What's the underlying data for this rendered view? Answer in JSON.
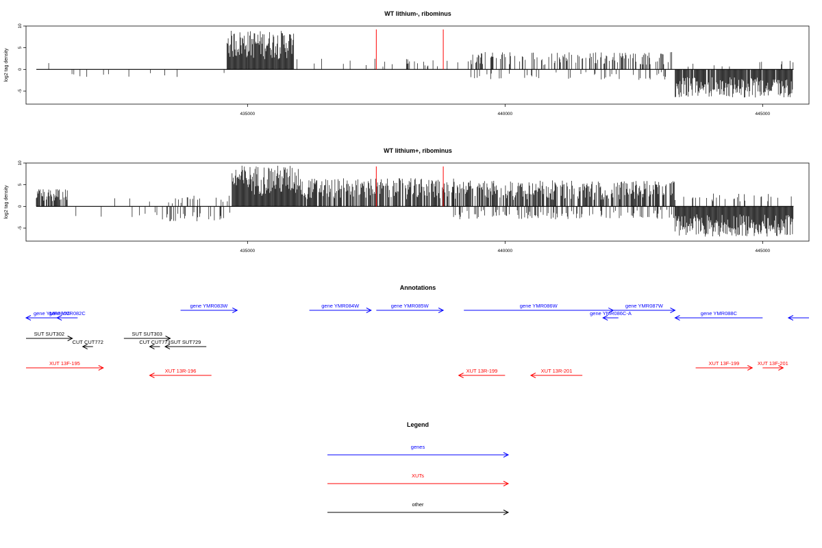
{
  "colors": {
    "genes": "#0000ff",
    "XUTs": "#ff0000",
    "other": "#000000",
    "marker": "#ff0000"
  },
  "chart_data": [
    {
      "type": "bar",
      "title": "WT lithium-, ribominus",
      "ylabel": "log2 tag density",
      "xlim": [
        430700,
        445900
      ],
      "ylim": [
        -8,
        10
      ],
      "xticks": [
        435000,
        440000,
        445000
      ],
      "yticks": [
        -5,
        0,
        5,
        10
      ],
      "markers": [
        437500,
        438800
      ],
      "approx_segments": [
        {
          "from": 430900,
          "to": 431400,
          "sign": 1,
          "max": 2.2,
          "density": 0.15
        },
        {
          "from": 431400,
          "to": 434700,
          "sign": -1,
          "max": 2.2,
          "density": 0.04
        },
        {
          "from": 434600,
          "to": 435900,
          "sign": 1,
          "max": 9.0,
          "density": 1.0
        },
        {
          "from": 435900,
          "to": 439300,
          "sign": 1,
          "max": 2.5,
          "density": 0.08
        },
        {
          "from": 439300,
          "to": 443300,
          "sign": 1,
          "max": 4.0,
          "density": 0.35
        },
        {
          "from": 439300,
          "to": 443300,
          "sign": -1,
          "max": 2.5,
          "density": 0.12
        },
        {
          "from": 443300,
          "to": 445600,
          "sign": -1,
          "max": 6.5,
          "density": 0.9
        },
        {
          "from": 443300,
          "to": 445600,
          "sign": 1,
          "max": 2.0,
          "density": 0.05
        }
      ]
    },
    {
      "type": "bar",
      "title": "WT lithium+, ribominus",
      "ylabel": "log2 tag density",
      "xlim": [
        430700,
        445900
      ],
      "ylim": [
        -8,
        10
      ],
      "xticks": [
        435000,
        440000,
        445000
      ],
      "yticks": [
        -5,
        0,
        5,
        10
      ],
      "markers": [
        437500,
        438800
      ],
      "approx_segments": [
        {
          "from": 430900,
          "to": 431500,
          "sign": 1,
          "max": 4.0,
          "density": 0.8
        },
        {
          "from": 431500,
          "to": 433300,
          "sign": 1,
          "max": 2.0,
          "density": 0.06
        },
        {
          "from": 431500,
          "to": 433300,
          "sign": -1,
          "max": 2.5,
          "density": 0.06
        },
        {
          "from": 433300,
          "to": 434700,
          "sign": -1,
          "max": 3.5,
          "density": 0.25
        },
        {
          "from": 433300,
          "to": 434700,
          "sign": 1,
          "max": 2.5,
          "density": 0.15
        },
        {
          "from": 434700,
          "to": 436000,
          "sign": 1,
          "max": 9.5,
          "density": 1.0
        },
        {
          "from": 436000,
          "to": 439000,
          "sign": 1,
          "max": 6.5,
          "density": 0.75
        },
        {
          "from": 439000,
          "to": 443300,
          "sign": 1,
          "max": 6.0,
          "density": 0.7
        },
        {
          "from": 439000,
          "to": 443300,
          "sign": -1,
          "max": 3.0,
          "density": 0.25
        },
        {
          "from": 443300,
          "to": 445600,
          "sign": -1,
          "max": 7.0,
          "density": 1.0
        },
        {
          "from": 443300,
          "to": 445600,
          "sign": 1,
          "max": 3.0,
          "density": 0.15
        }
      ]
    }
  ],
  "annotations": {
    "title": "Annotations",
    "xlim": [
      430700,
      445900
    ],
    "rows": {
      "genes_upper": 0,
      "genes_lower": 1,
      "other_a": 2,
      "other_b": 3,
      "xut_a": 4,
      "xut_b": 5
    },
    "features": [
      {
        "type": "genes",
        "label": "gene YMR081C",
        "start": 430700,
        "end": 431700,
        "strand": "-",
        "row": "genes_lower"
      },
      {
        "type": "genes",
        "label": "gene YMR082C",
        "start": 431300,
        "end": 431700,
        "strand": "-",
        "row": "genes_lower"
      },
      {
        "type": "genes",
        "label": "gene YMR083W",
        "start": 433700,
        "end": 434800,
        "strand": "+",
        "row": "genes_upper"
      },
      {
        "type": "genes",
        "label": "gene YMR084W",
        "start": 436200,
        "end": 437400,
        "strand": "+",
        "row": "genes_upper"
      },
      {
        "type": "genes",
        "label": "gene YMR085W",
        "start": 437500,
        "end": 438800,
        "strand": "+",
        "row": "genes_upper"
      },
      {
        "type": "genes",
        "label": "gene YMR086W",
        "start": 439200,
        "end": 442100,
        "strand": "+",
        "row": "genes_upper"
      },
      {
        "type": "genes",
        "label": "gene YMR086C-A",
        "start": 441900,
        "end": 442200,
        "strand": "-",
        "row": "genes_lower"
      },
      {
        "type": "genes",
        "label": "gene YMR087W",
        "start": 442100,
        "end": 443300,
        "strand": "+",
        "row": "genes_upper"
      },
      {
        "type": "genes",
        "label": "gene YMR088C",
        "start": 443300,
        "end": 445000,
        "strand": "-",
        "row": "genes_lower"
      },
      {
        "type": "genes",
        "label": "",
        "start": 445500,
        "end": 445900,
        "strand": "-",
        "row": "genes_lower"
      },
      {
        "type": "other",
        "label": "SUT SUT302",
        "start": 430700,
        "end": 431600,
        "strand": "+",
        "row": "other_a"
      },
      {
        "type": "other",
        "label": "SUT SUT303",
        "start": 432600,
        "end": 433500,
        "strand": "+",
        "row": "other_a"
      },
      {
        "type": "other",
        "label": "SUT SUT729",
        "start": 433400,
        "end": 434200,
        "strand": "-",
        "row": "other_b"
      },
      {
        "type": "other",
        "label": "CUT CUT772",
        "start": 431800,
        "end": 432000,
        "strand": "-",
        "row": "other_b"
      },
      {
        "type": "other",
        "label": "CUT CUT773",
        "start": 433100,
        "end": 433300,
        "strand": "-",
        "row": "other_b"
      },
      {
        "type": "XUTs",
        "label": "XUT 13F-195",
        "start": 430700,
        "end": 432200,
        "strand": "+",
        "row": "xut_a"
      },
      {
        "type": "XUTs",
        "label": "XUT 13R-196",
        "start": 433100,
        "end": 434300,
        "strand": "-",
        "row": "xut_b"
      },
      {
        "type": "XUTs",
        "label": "XUT 13R-199",
        "start": 439100,
        "end": 440000,
        "strand": "-",
        "row": "xut_b"
      },
      {
        "type": "XUTs",
        "label": "XUT 13R-201",
        "start": 440500,
        "end": 441500,
        "strand": "-",
        "row": "xut_b"
      },
      {
        "type": "XUTs",
        "label": "XUT 13F-199",
        "start": 443700,
        "end": 444800,
        "strand": "+",
        "row": "xut_a"
      },
      {
        "type": "XUTs",
        "label": "XUT 13F-201",
        "start": 445000,
        "end": 445400,
        "strand": "+",
        "row": "xut_a"
      }
    ]
  },
  "legend": {
    "title": "Legend",
    "items": [
      {
        "label": "genes",
        "type": "genes"
      },
      {
        "label": "XUTs",
        "type": "XUTs"
      },
      {
        "label": "other",
        "type": "other"
      }
    ]
  }
}
